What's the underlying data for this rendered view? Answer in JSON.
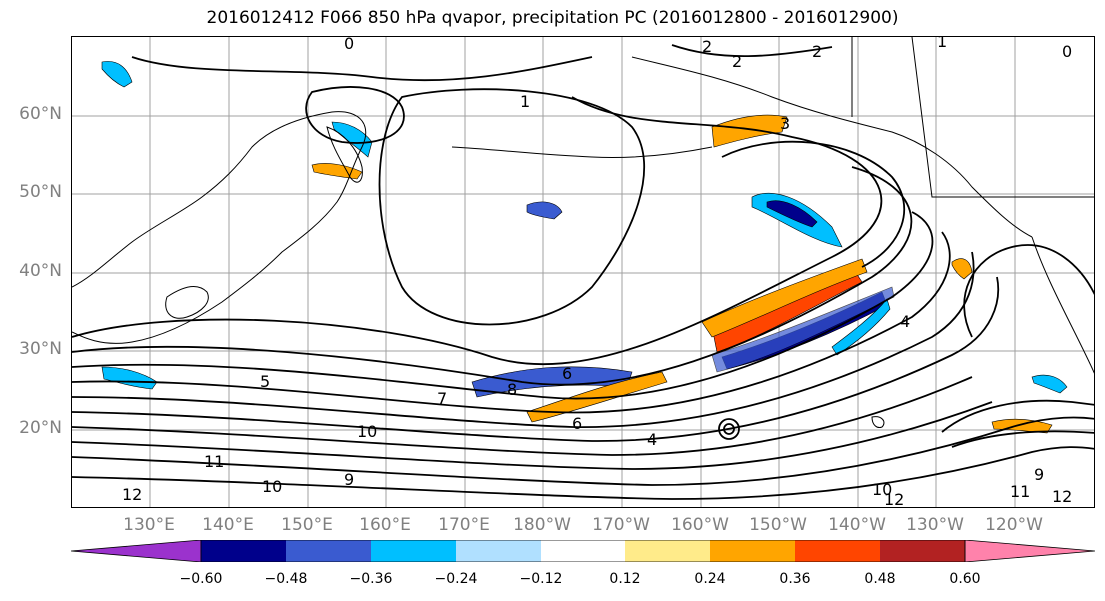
{
  "title": "2016012412 F066 850 hPa qvapor, precipitation PC (2016012800 - 2016012900)",
  "lat_labels": [
    "60°N",
    "50°N",
    "40°N",
    "30°N",
    "20°N"
  ],
  "lon_labels": [
    "130°E",
    "140°E",
    "150°E",
    "160°E",
    "170°E",
    "180°W",
    "170°W",
    "160°W",
    "150°W",
    "140°W",
    "130°W",
    "120°W"
  ],
  "colorbar": {
    "ticks": [
      "−0.60",
      "−0.48",
      "−0.36",
      "−0.24",
      "−0.12",
      "0.12",
      "0.24",
      "0.36",
      "0.48",
      "0.60"
    ],
    "colors": [
      "#9b32cd",
      "#00008b",
      "#3a5bd0",
      "#00bfff",
      "#b0e0ff",
      "#ffffff",
      "#ffeb8a",
      "#ffa500",
      "#ff4500",
      "#b22222",
      "#ff82ab"
    ]
  },
  "contour_labels": [
    "0",
    "1",
    "2",
    "2",
    "2",
    "1",
    "0",
    "5",
    "6",
    "7",
    "8",
    "10",
    "11",
    "12",
    "10",
    "9",
    "6",
    "4",
    "12",
    "9",
    "10",
    "11",
    "12",
    "4",
    "3"
  ],
  "colors": {
    "grid": "#a0a0a0",
    "coast": "#000000",
    "contour": "#000000"
  }
}
